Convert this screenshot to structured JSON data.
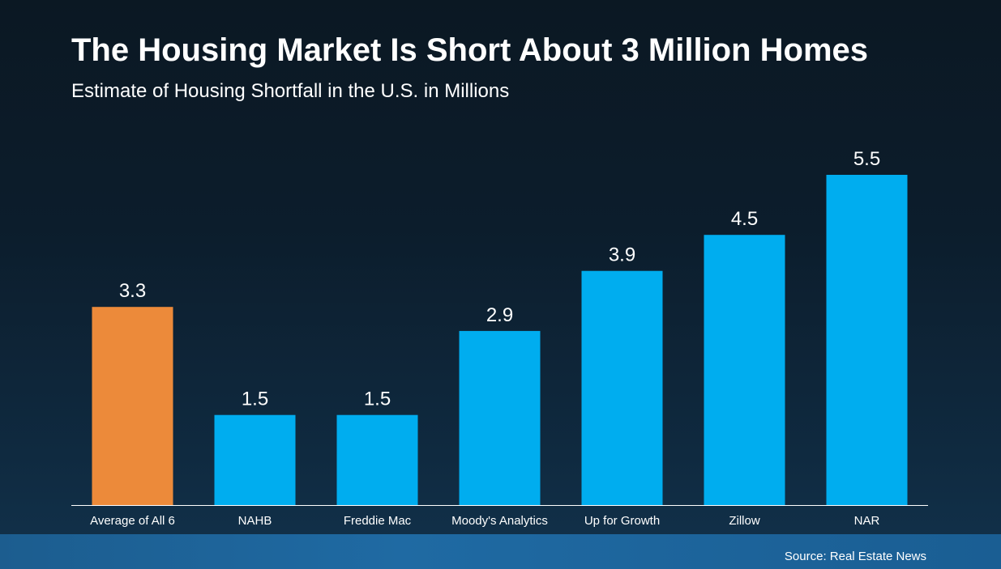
{
  "title": "The Housing Market Is Short About 3 Million Homes",
  "subtitle": "Estimate of Housing Shortfall in the U.S. in Millions",
  "source": "Source: Real Estate News",
  "colors": {
    "highlight_bar": "#ec8a3a",
    "bar": "#00adef",
    "axis": "#ffffff",
    "text": "#ffffff"
  },
  "chart_data": {
    "type": "bar",
    "categories": [
      "Average of All 6",
      "NAHB",
      "Freddie Mac",
      "Moody's Analytics",
      "Up for Growth",
      "Zillow",
      "NAR"
    ],
    "values": [
      3.3,
      1.5,
      1.5,
      2.9,
      3.9,
      4.5,
      5.5
    ],
    "highlight_index": 0,
    "data_labels": [
      "3.3",
      "1.5",
      "1.5",
      "2.9",
      "3.9",
      "4.5",
      "5.5"
    ],
    "title": "The Housing Market Is Short About 3 Million Homes",
    "subtitle": "Estimate of Housing Shortfall in the U.S. in Millions",
    "xlabel": "",
    "ylabel": "",
    "ylim": [
      0,
      5.5
    ],
    "grid": false,
    "legend": "none"
  }
}
